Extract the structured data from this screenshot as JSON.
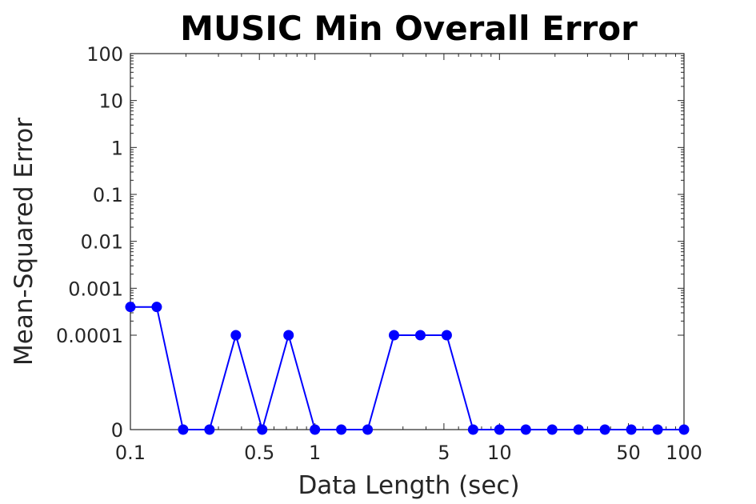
{
  "chart_data": {
    "type": "line",
    "title": "MUSIC Min Overall Error",
    "xlabel": "Data Length (sec)",
    "ylabel": "Mean-Squared Error",
    "xscale": "log",
    "xlim": [
      0.1,
      100
    ],
    "x_ticks": [
      0.1,
      0.5,
      1,
      5,
      10,
      50,
      100
    ],
    "x_tick_labels": [
      "0.1",
      "0.5",
      "1",
      "5",
      "10",
      "50",
      "100"
    ],
    "y_ticks": [
      0,
      0.0001,
      0.001,
      0.01,
      0.1,
      1,
      10,
      100
    ],
    "y_tick_labels": [
      "0",
      "0.0001",
      "0.001",
      "0.01",
      "0.1",
      "1",
      "10",
      "100"
    ],
    "grid": false,
    "box": true,
    "series": [
      {
        "color": "#0000ff",
        "marker": "circle",
        "x": [
          0.1,
          0.1389,
          0.1931,
          0.2683,
          0.3728,
          0.5179,
          0.7197,
          1.0,
          1.3895,
          1.9307,
          2.6827,
          3.7276,
          5.1795,
          7.1969,
          10.0,
          13.895,
          19.307,
          26.827,
          37.276,
          51.795,
          71.969,
          100.0
        ],
        "y": [
          0.0004,
          0.0004,
          0,
          0,
          0.0001,
          0,
          0.0001,
          0,
          0,
          0,
          0.0001,
          0.0001,
          0.0001,
          0,
          0,
          0,
          0,
          0,
          0,
          0,
          0,
          0
        ]
      }
    ]
  }
}
